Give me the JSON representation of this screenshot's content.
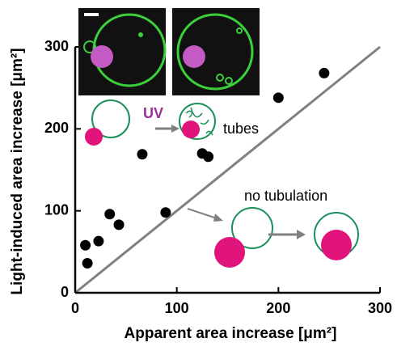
{
  "chart_data": {
    "type": "scatter",
    "x_label": "Apparent area increase  [μm²]",
    "y_label": "Light-induced area increase [μm²]",
    "series": [
      {
        "color": "#000000",
        "x": [
          10,
          12,
          23,
          34,
          43,
          66,
          89,
          125,
          131,
          200,
          245
        ],
        "values": [
          58,
          36,
          63,
          96,
          83,
          169,
          98,
          170,
          166,
          238,
          268
        ]
      }
    ],
    "xlim": [
      0,
      300
    ],
    "ylim": [
      0,
      300
    ],
    "xticks": [
      0,
      100,
      200,
      300
    ],
    "yticks": [
      0,
      100,
      200,
      300
    ],
    "reference_line_color": "#808080",
    "annotations": {
      "uv": "UV",
      "tubes": "tubes",
      "no_tubulation": "no tubulation"
    }
  }
}
